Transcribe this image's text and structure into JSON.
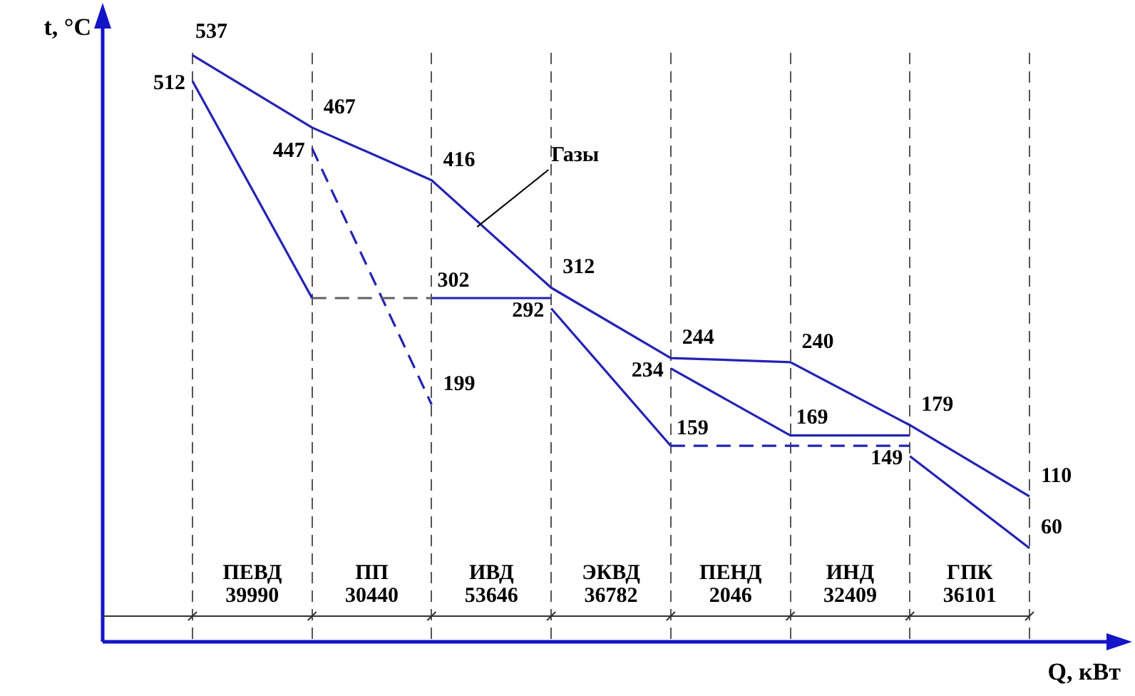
{
  "chart_data": {
    "type": "line",
    "ylabel": "t, °C",
    "xlabel": "Q, кВт",
    "relative": false,
    "tick_labels": false,
    "grid": "x",
    "marker": "none",
    "legend": false,
    "categories": [
      null,
      null,
      null,
      null,
      null,
      null,
      null,
      null
    ],
    "series": [
      {
        "color": "#2323b4",
        "values": [
          537,
          467,
          416,
          312,
          244,
          240,
          179,
          110
        ],
        "value_labels": [
          "537",
          "467",
          "416",
          "312",
          "244",
          "240",
          "179",
          "110"
        ]
      },
      {
        "color": "#2323b4",
        "values": [
          512,
          302,
          null,
          null,
          null,
          null,
          null,
          null
        ],
        "value_labels": [
          "512",
          null,
          null,
          null,
          null,
          null,
          null,
          null
        ]
      },
      {
        "color": "#606060",
        "line_style": "dashed",
        "values": [
          null,
          302,
          302,
          null,
          null,
          null,
          null,
          null
        ]
      },
      {
        "color": "#2323b4",
        "values": [
          null,
          null,
          302,
          302,
          null,
          null,
          null,
          null
        ],
        "value_labels": [
          null,
          null,
          "302",
          null,
          null,
          null,
          null,
          null
        ]
      },
      {
        "color": "#2323b4",
        "values": [
          null,
          null,
          null,
          292,
          159,
          null,
          null,
          null
        ],
        "value_labels": [
          null,
          null,
          null,
          "292",
          null,
          null,
          null,
          null
        ]
      },
      {
        "color": "#2323b4",
        "line_style": "dashed",
        "values": [
          null,
          null,
          null,
          null,
          159,
          159,
          159,
          null
        ],
        "value_labels": [
          null,
          null,
          null,
          null,
          "159",
          null,
          null,
          null
        ]
      },
      {
        "color": "#2323b4",
        "line_style": "dashed",
        "values": [
          null,
          447,
          199,
          null,
          null,
          null,
          null,
          null
        ],
        "value_labels": [
          null,
          "447",
          "199",
          null,
          null,
          null,
          null,
          null
        ]
      },
      {
        "color": "#2323b4",
        "values": [
          null,
          null,
          null,
          null,
          234,
          169,
          169,
          null
        ],
        "value_labels": [
          null,
          null,
          null,
          null,
          "234",
          "169",
          null,
          null
        ]
      },
      {
        "color": "#2323b4",
        "values": [
          null,
          null,
          null,
          null,
          null,
          null,
          149,
          60
        ],
        "value_labels": [
          null,
          null,
          null,
          null,
          null,
          null,
          "149",
          "60"
        ]
      }
    ],
    "annotations": [
      "ПЕВД 39990",
      "ПП 30440",
      "ИВД 53646",
      "ЭКВД 36782",
      "ПЕНД 2046",
      "ИНД 32409",
      "ГПК 36101",
      "Газы"
    ]
  }
}
